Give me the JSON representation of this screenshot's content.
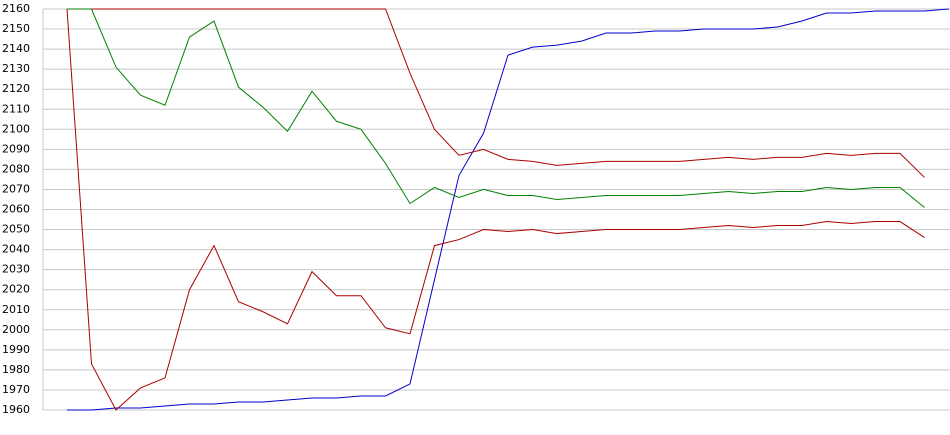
{
  "chart_data": {
    "type": "line",
    "categories": [
      null,
      null,
      null,
      null,
      null,
      null,
      null,
      null,
      null,
      null,
      null,
      null,
      null,
      null,
      null,
      null,
      null,
      null,
      null,
      null,
      null,
      null,
      null,
      null,
      null,
      null,
      null,
      null,
      null,
      null,
      null,
      null,
      null,
      null,
      null,
      null,
      null
    ],
    "series": [
      {
        "color": "#0000cc",
        "values": [
          1960,
          1960,
          1961,
          1961,
          1962,
          1963,
          1963,
          1964,
          1964,
          1965,
          1966,
          1966,
          1967,
          1967,
          1973,
          2025,
          2077,
          2098,
          2137,
          2141,
          2142,
          2144,
          2148,
          2148,
          2149,
          2149,
          2150,
          2150,
          2150,
          2151,
          2154,
          2158,
          2158,
          2159,
          2159,
          2159,
          2160
        ]
      },
      {
        "color": "#aa0000",
        "values": [
          2160,
          2160,
          2160,
          2160,
          2160,
          2160,
          2160,
          2160,
          2160,
          2160,
          2160,
          2160,
          2160,
          2160,
          2128,
          2100,
          2087,
          2090,
          2085,
          2084,
          2082,
          2083,
          2084,
          2084,
          2084,
          2084,
          2085,
          2086,
          2085,
          2086,
          2086,
          2088,
          2087,
          2088,
          2088,
          2076,
          null
        ]
      },
      {
        "color": "#008000",
        "values": [
          2160,
          2160,
          2131,
          2117,
          2112,
          2146,
          2154,
          2121,
          2111,
          2099,
          2119,
          2104,
          2100,
          2083,
          2063,
          2071,
          2066,
          2070,
          2067,
          2067,
          2065,
          2066,
          2067,
          2067,
          2067,
          2067,
          2068,
          2069,
          2068,
          2069,
          2069,
          2071,
          2070,
          2071,
          2071,
          2061,
          null
        ]
      },
      {
        "color": "#aa0000",
        "values": [
          2160,
          1983,
          1960,
          1971,
          1976,
          2020,
          2042,
          2014,
          2009,
          2003,
          2029,
          2017,
          2017,
          2001,
          1998,
          2042,
          2045,
          2050,
          2049,
          2050,
          2048,
          2049,
          2050,
          2050,
          2050,
          2050,
          2051,
          2052,
          2051,
          2052,
          2052,
          2054,
          2053,
          2054,
          2054,
          2046,
          null
        ]
      }
    ],
    "ylim": [
      1960,
      2160
    ],
    "yticks": [
      1960,
      1970,
      1980,
      1990,
      2000,
      2010,
      2020,
      2030,
      2040,
      2050,
      2060,
      2070,
      2080,
      2090,
      2100,
      2110,
      2120,
      2130,
      2140,
      2150,
      2160
    ],
    "grid": true
  }
}
